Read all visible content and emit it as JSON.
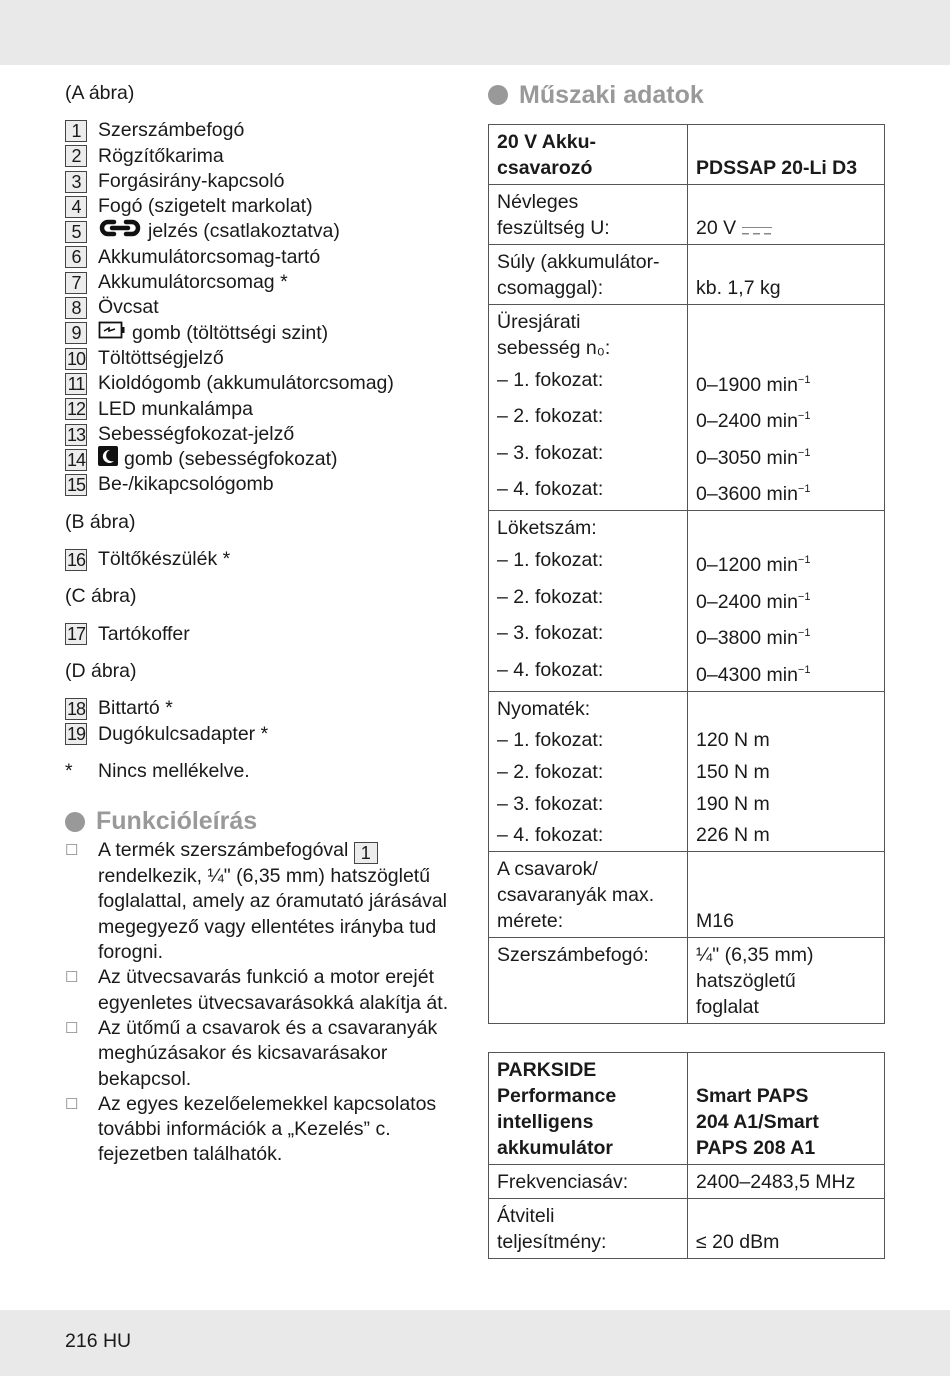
{
  "footer": "216 HU",
  "left": {
    "fig_a": "(A ábra)",
    "items_a": [
      {
        "n": "1",
        "text": "Szerszámbefogó"
      },
      {
        "n": "2",
        "text": "Rögzítőkarima"
      },
      {
        "n": "3",
        "text": "Forgásirány-kapcsoló"
      },
      {
        "n": "4",
        "text": "Fogó (szigetelt markolat)"
      },
      {
        "n": "5",
        "icon": "link-icon",
        "text": "jelzés (csatlakoztatva)"
      },
      {
        "n": "6",
        "text": "Akkumulátorcsomag-tartó"
      },
      {
        "n": "7",
        "text": "Akkumulátorcsomag *"
      },
      {
        "n": "8",
        "text": "Övcsat"
      },
      {
        "n": "9",
        "icon": "battery-charge-icon",
        "text": "gomb (töltöttségi szint)"
      },
      {
        "n": "10",
        "text": "Töltöttségjelző"
      },
      {
        "n": "11",
        "text": "Kioldógomb (akkumulátorcsomag)"
      },
      {
        "n": "12",
        "text": "LED munkalámpa"
      },
      {
        "n": "13",
        "text": "Sebességfokozat-jelző"
      },
      {
        "n": "14",
        "icon": "moon-icon",
        "text": "gomb (sebességfokozat)"
      },
      {
        "n": "15",
        "text": "Be-/kikapcsológomb"
      }
    ],
    "fig_b": "(B ábra)",
    "items_b": [
      {
        "n": "16",
        "text": "Töltőkészülék *"
      }
    ],
    "fig_c": "(C ábra)",
    "items_c": [
      {
        "n": "17",
        "text": "Tartókoffer"
      }
    ],
    "fig_d": "(D ábra)",
    "items_d": [
      {
        "n": "18",
        "text": "Bittartó *"
      },
      {
        "n": "19",
        "text": "Dugókulcsadapter *"
      }
    ],
    "note_star": "*",
    "note_text": "Nincs mellékelve.",
    "func_title": "Funkcióleírás",
    "bullets": [
      {
        "before": "A termék szerszámbefogóval ",
        "ref": "1",
        "after": " rendelkezik, ¼\" (6,35 mm) hatszögletű foglalattal, amely az óramutató járásával megegyező vagy ellentétes irányba tud forogni."
      },
      {
        "before": "Az ütvecsavarás funkció a motor erejét egyenletes ütvecsavarásokká alakítja át."
      },
      {
        "before": "Az ütőmű a csavarok és a csavaranyák meghúzásakor és kicsavarásakor bekapcsol."
      },
      {
        "before": "Az egyes kezelőelemekkel kapcsolatos további információk a „Kezelés” c. fejezetben találhatók."
      }
    ]
  },
  "right": {
    "title": "Műszaki adatok",
    "table1": [
      [
        {
          "l": "20 V Akku-\ncsavarozó",
          "r": "PDSSAP 20-Li D3",
          "bold": true
        }
      ],
      [
        {
          "l": "Névleges\nfeszültség U:",
          "r": "20 V",
          "icon": "dc-symbol-icon"
        }
      ],
      [
        {
          "l": "Súly (akkumulátor-\ncsomaggal):",
          "r": "kb. 1,7 kg"
        }
      ],
      [
        {
          "l": "Üresjárati\nsebesség n₀:",
          "r": ""
        },
        {
          "l": "– 1. fokozat:",
          "r": "0–1900 min",
          "sup": "−1"
        },
        {
          "l": "– 2. fokozat:",
          "r": "0–2400 min",
          "sup": "−1"
        },
        {
          "l": "– 3. fokozat:",
          "r": "0–3050 min",
          "sup": "−1"
        },
        {
          "l": "– 4. fokozat:",
          "r": "0–3600 min",
          "sup": "−1"
        }
      ],
      [
        {
          "l": "Löketszám:",
          "r": ""
        },
        {
          "l": "– 1. fokozat:",
          "r": "0–1200 min",
          "sup": "−1"
        },
        {
          "l": "– 2. fokozat:",
          "r": "0–2400 min",
          "sup": "−1"
        },
        {
          "l": "– 3. fokozat:",
          "r": "0–3800 min",
          "sup": "−1"
        },
        {
          "l": "– 4. fokozat:",
          "r": "0–4300 min",
          "sup": "−1"
        }
      ],
      [
        {
          "l": "Nyomaték:",
          "r": ""
        },
        {
          "l": "– 1. fokozat:",
          "r": "120 N m"
        },
        {
          "l": "– 2. fokozat:",
          "r": "150 N m"
        },
        {
          "l": "– 3. fokozat:",
          "r": "190 N m"
        },
        {
          "l": "– 4. fokozat:",
          "r": "226 N m"
        }
      ],
      [
        {
          "l": "A csavarok/\ncsavaranyák max.\nmérete:",
          "r": "M16"
        }
      ],
      [
        {
          "l": "Szerszámbefogó:",
          "r": "¼\" (6,35 mm)\nhatszögletű\nfoglalat",
          "top": true
        }
      ]
    ],
    "table2": [
      [
        {
          "l": "PARKSIDE\nPerformance\nintelligens\nakkumulátor",
          "r": "Smart PAPS\n204 A1/Smart\nPAPS 208 A1",
          "bold": true
        }
      ],
      [
        {
          "l": "Frekvenciasáv:",
          "r": "2400–2483,5 MHz"
        }
      ],
      [
        {
          "l": "Átviteli\nteljesítmény:",
          "r": "≤ 20 dBm"
        }
      ]
    ]
  }
}
